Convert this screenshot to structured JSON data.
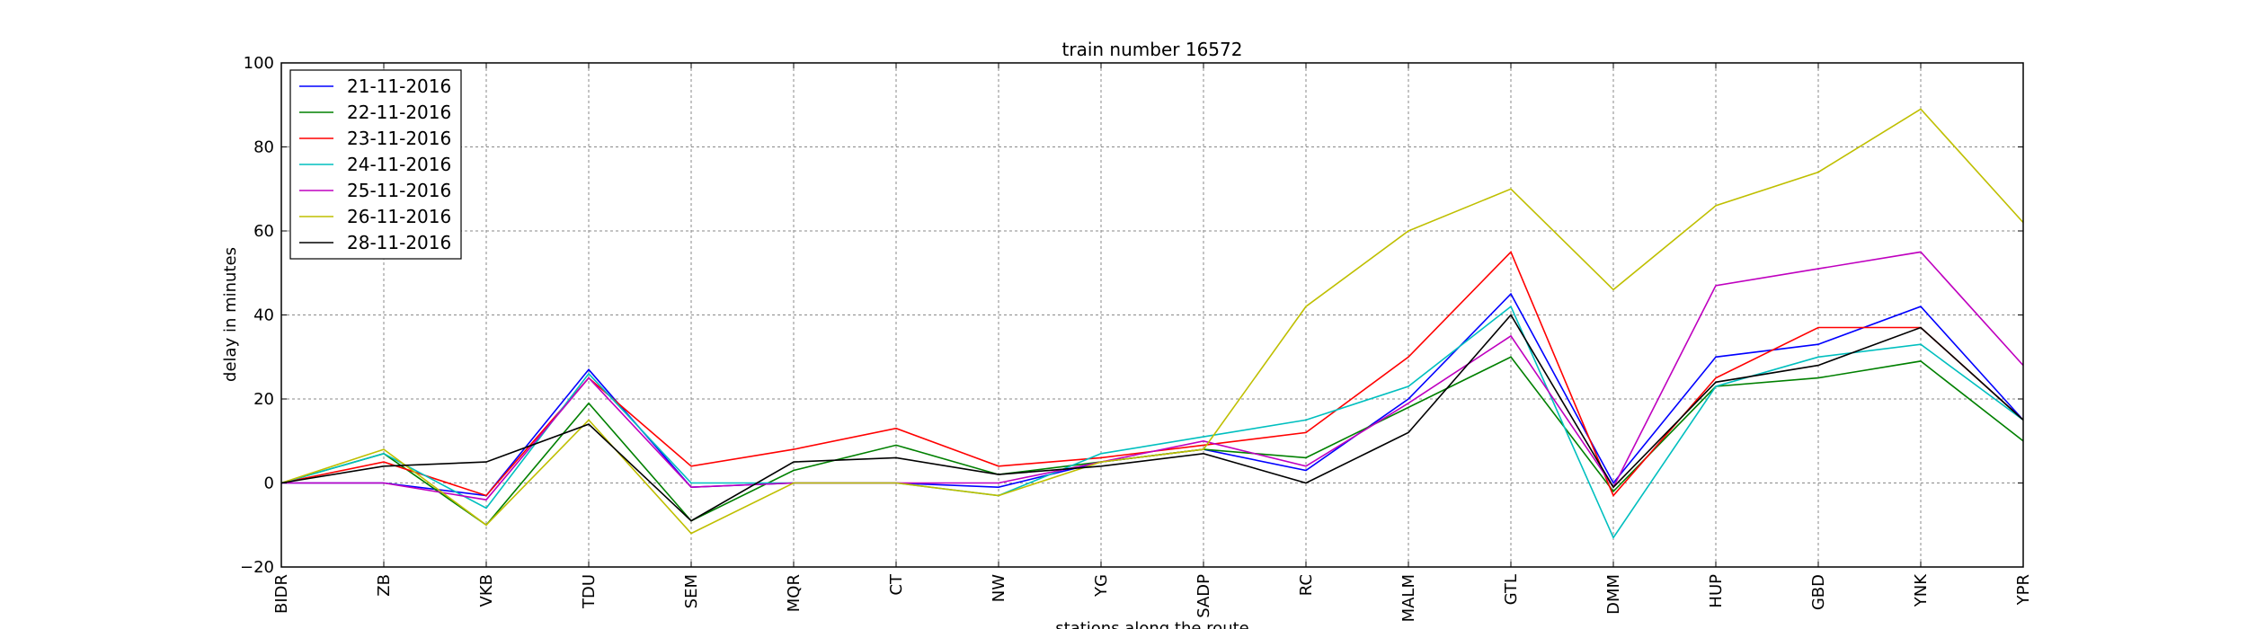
{
  "chart_data": {
    "type": "line",
    "title": "train number 16572",
    "xlabel": "stations along the route",
    "ylabel": "delay in minutes",
    "ylim": [
      -20,
      100
    ],
    "yticks": [
      -20,
      0,
      20,
      40,
      60,
      80,
      100
    ],
    "grid": true,
    "legend_position": "top-left",
    "categories": [
      "BIDR",
      "ZB",
      "VKB",
      "TDU",
      "SEM",
      "MQR",
      "CT",
      "NW",
      "YG",
      "SADP",
      "RC",
      "MALM",
      "GTL",
      "DMM",
      "HUP",
      "GBD",
      "YNK",
      "YPR"
    ],
    "series": [
      {
        "name": "21-11-2016",
        "color": "#0000ff",
        "values": [
          0,
          0,
          -3,
          27,
          -1,
          0,
          0,
          -1,
          5,
          8,
          3,
          20,
          45,
          0,
          30,
          33,
          42,
          15
        ]
      },
      {
        "name": "22-11-2016",
        "color": "#008000",
        "values": [
          0,
          7,
          -10,
          19,
          -9,
          3,
          9,
          2,
          5,
          8,
          6,
          18,
          30,
          -2,
          23,
          25,
          29,
          10
        ]
      },
      {
        "name": "23-11-2016",
        "color": "#ff0000",
        "values": [
          0,
          5,
          -3,
          25,
          4,
          8,
          13,
          4,
          6,
          9,
          12,
          30,
          55,
          -3,
          25,
          37,
          37,
          15
        ]
      },
      {
        "name": "24-11-2016",
        "color": "#00bfbf",
        "values": [
          0,
          7,
          -6,
          26,
          0,
          0,
          0,
          -3,
          7,
          11,
          15,
          23,
          42,
          -13,
          23,
          30,
          33,
          15
        ]
      },
      {
        "name": "25-11-2016",
        "color": "#bf00bf",
        "values": [
          0,
          0,
          -4,
          25,
          -1,
          0,
          0,
          0,
          5,
          10,
          4,
          19,
          35,
          -1,
          47,
          51,
          55,
          28
        ]
      },
      {
        "name": "26-11-2016",
        "color": "#bfbf00",
        "values": [
          0,
          8,
          -10,
          15,
          -12,
          0,
          0,
          -3,
          5,
          8,
          42,
          60,
          70,
          46,
          66,
          74,
          89,
          62
        ]
      },
      {
        "name": "28-11-2016",
        "color": "#000000",
        "values": [
          0,
          4,
          5,
          14,
          -9,
          5,
          6,
          2,
          4,
          7,
          0,
          12,
          40,
          -1,
          24,
          28,
          37,
          15
        ]
      }
    ]
  }
}
